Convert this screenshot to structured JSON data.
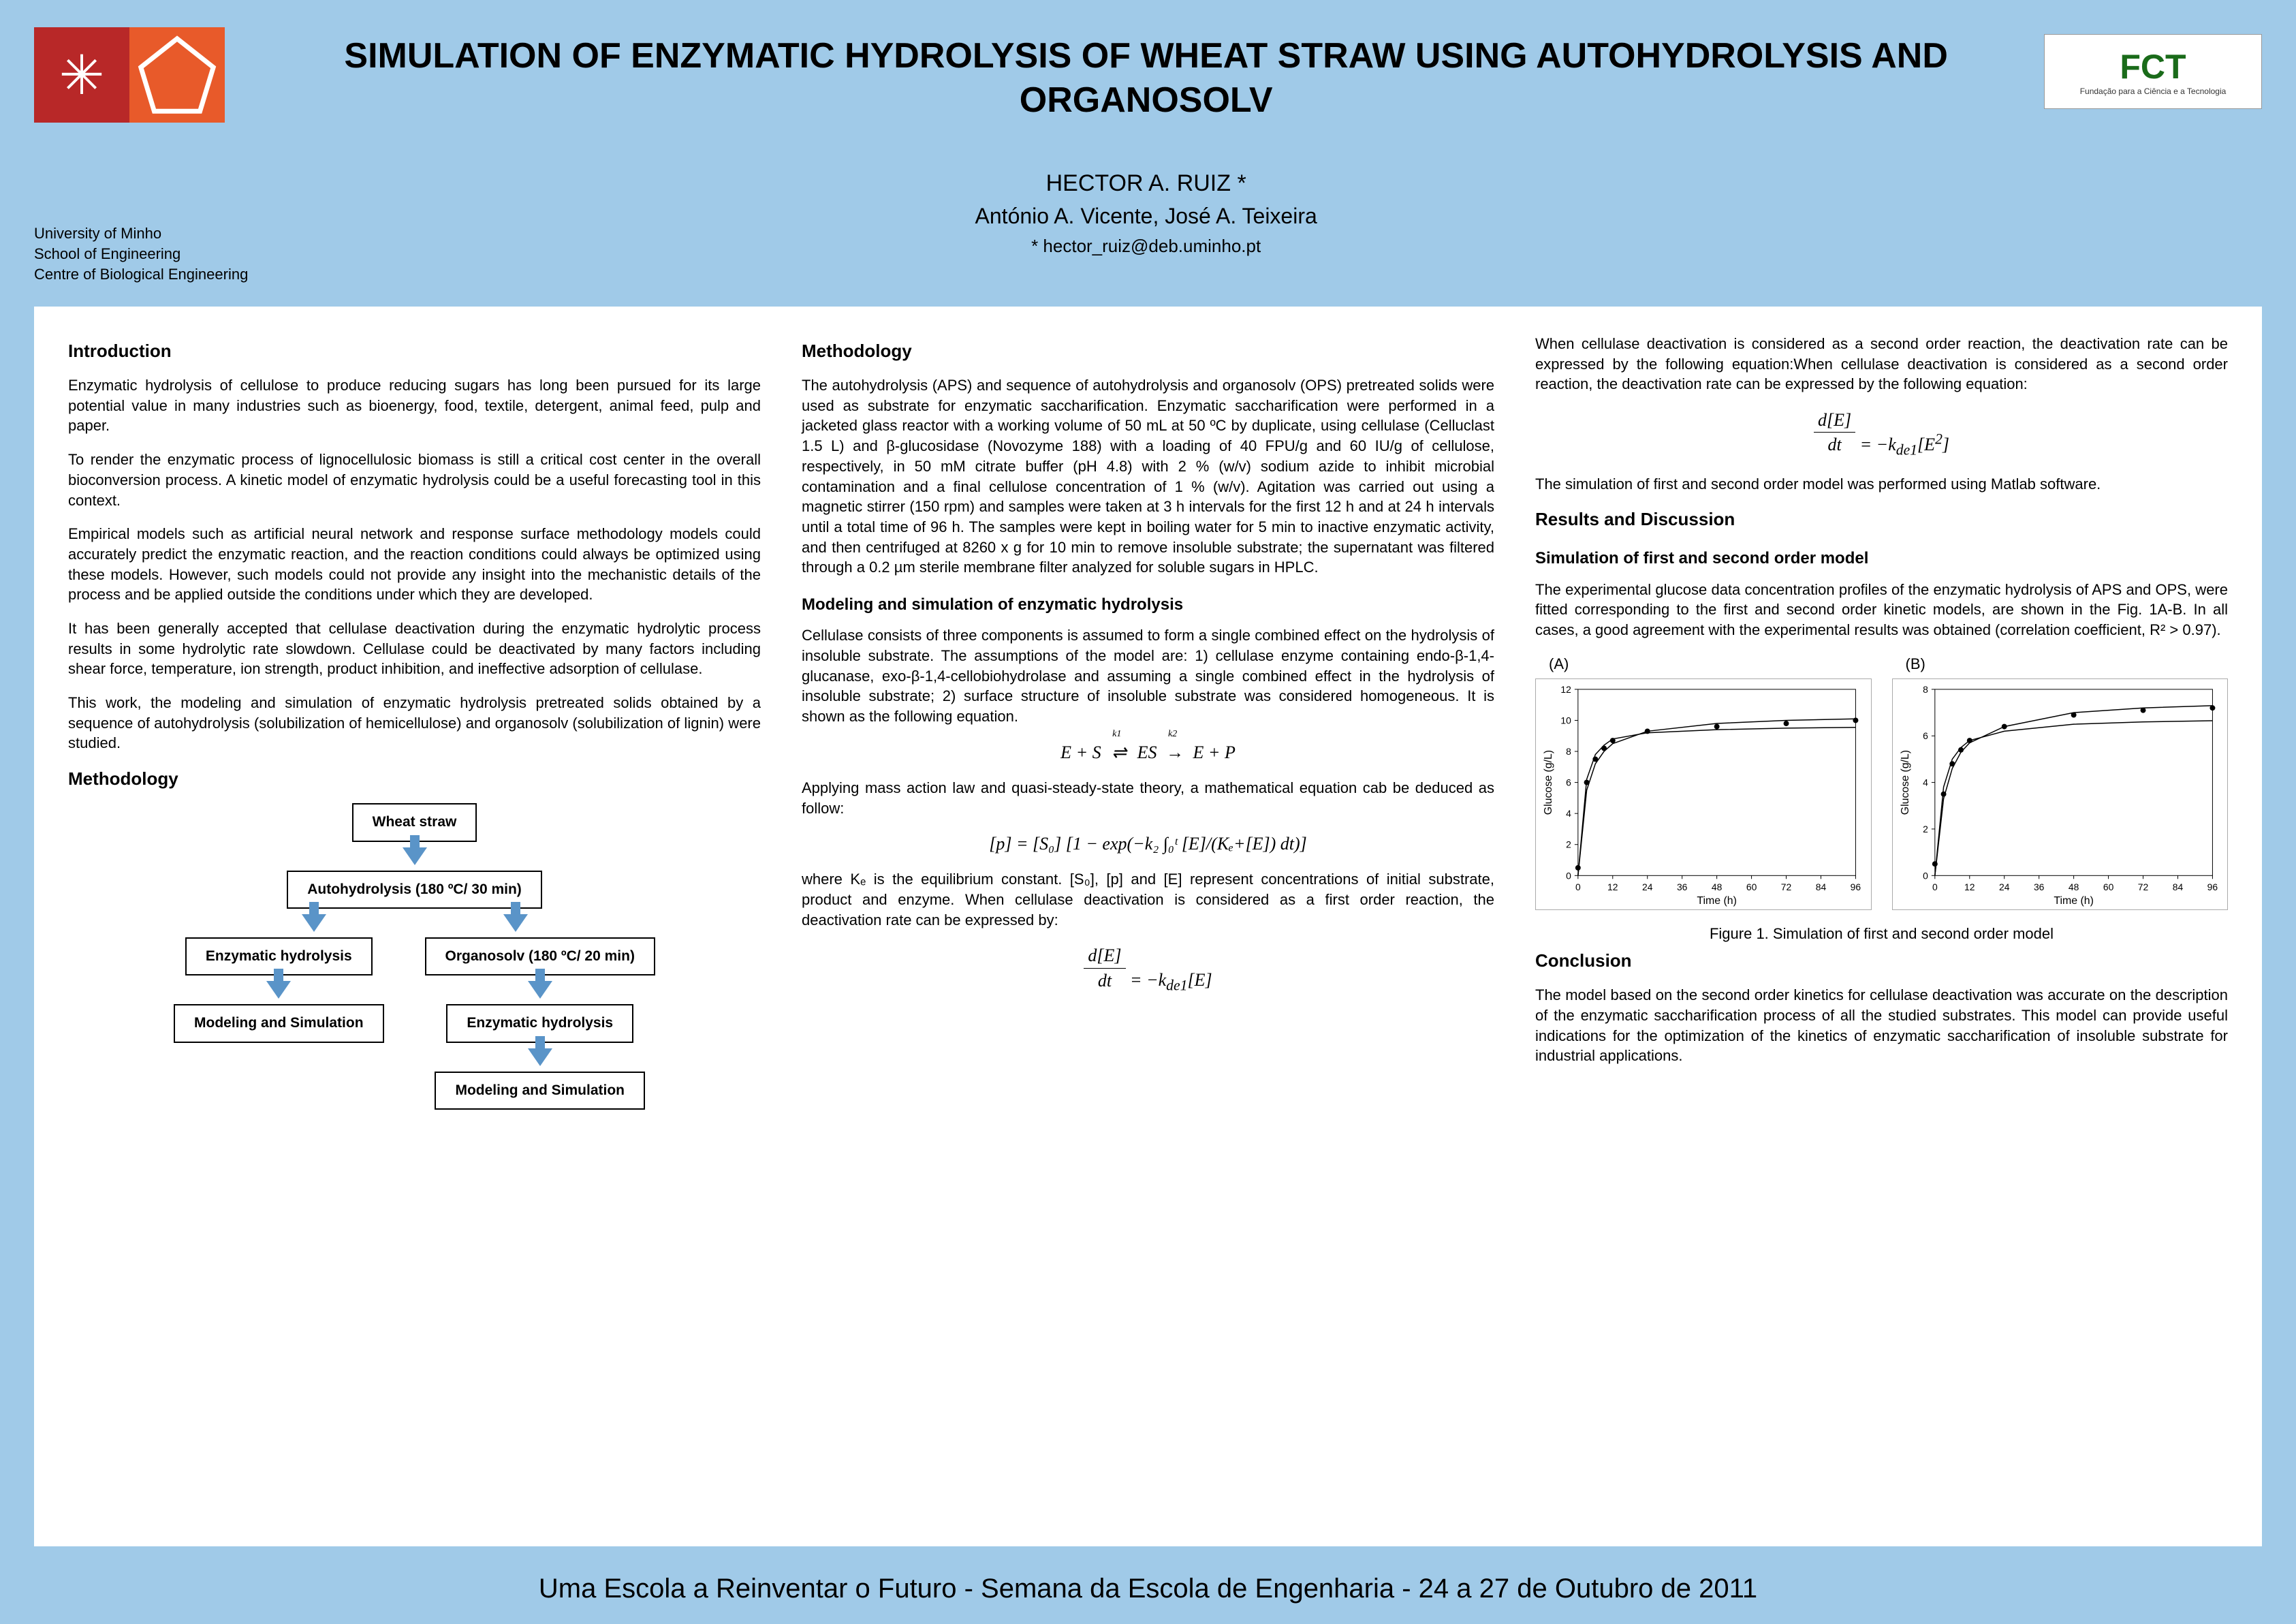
{
  "header": {
    "title": "SIMULATION OF ENZYMATIC HYDROLYSIS OF WHEAT STRAW USING AUTOHYDROLYSIS AND ORGANOSOLV",
    "author_main": "HECTOR A. RUIZ *",
    "authors_other": "António A. Vicente, José A. Teixeira",
    "email": "* hector_ruiz@deb.uminho.pt",
    "affil_1": "University of Minho",
    "affil_2": "School of Engineering",
    "affil_3": "Centre of Biological Engineering",
    "fct_label": "FCT",
    "fct_sub": "Fundação para a Ciência e a Tecnologia"
  },
  "col1": {
    "h_intro": "Introduction",
    "p1": "Enzymatic hydrolysis of cellulose to produce reducing sugars has long been pursued for its large potential value in many industries such as bioenergy, food, textile, detergent, animal feed, pulp and paper.",
    "p2": "To render the enzymatic process of lignocellulosic biomass is still a critical cost center in the overall bioconversion process. A kinetic model of enzymatic hydrolysis could be a useful forecasting tool in this context.",
    "p3": "Empirical models such as artificial neural network and response surface methodology models could accurately predict the enzymatic reaction, and the reaction conditions could always be optimized using these models. However, such models could not provide any insight into the mechanistic details of the process and be applied outside the conditions under which they are developed.",
    "p4": "It has been generally accepted that cellulase deactivation during the enzymatic hydrolytic process results in some hydrolytic rate slowdown. Cellulase could be deactivated by many factors including shear force, temperature, ion strength, product inhibition, and ineffective adsorption of cellulase.",
    "p5": "This work, the modeling and simulation of enzymatic hydrolysis pretreated solids obtained by a sequence of autohydrolysis (solubilization of hemicellulose) and organosolv (solubilization of lignin) were studied.",
    "h_meth": "Methodology",
    "flow": {
      "b1": "Wheat straw",
      "b2": "Autohydrolysis (180 ºC/ 30 min)",
      "b3a": "Enzymatic hydrolysis",
      "b3b": "Organosolv (180 ºC/ 20 min)",
      "b4a": "Modeling and Simulation",
      "b4b": "Enzymatic hydrolysis",
      "b5b": "Modeling and Simulation"
    }
  },
  "col2": {
    "h_meth": "Methodology",
    "p1": "The autohydrolysis (APS) and sequence of autohydrolysis and organosolv (OPS) pretreated solids were used as substrate for enzymatic saccharification. Enzymatic saccharification were performed in a jacketed glass reactor with a working volume of 50 mL at 50 ºC by duplicate, using cellulase (Celluclast 1.5 L) and β-glucosidase (Novozyme 188) with a loading of 40 FPU/g and 60 IU/g of cellulose, respectively, in 50 mM citrate buffer (pH 4.8) with 2 % (w/v) sodium azide to inhibit microbial contamination and a final cellulose concentration of 1 % (w/v). Agitation was carried out using a magnetic stirrer (150 rpm) and samples were taken at 3 h intervals for the first 12 h and at 24 h intervals until a total time of 96 h. The samples were kept in boiling water for 5 min to inactive enzymatic activity, and then centrifuged at 8260 x g for 10 min to remove insoluble substrate; the supernatant was filtered through a 0.2 µm sterile membrane filter analyzed for soluble sugars in HPLC.",
    "h_model": "Modeling and simulation of enzymatic hydrolysis",
    "p2": "Cellulase consists of three components is assumed to form a single combined effect on the hydrolysis of insoluble substrate. The assumptions of the model are: 1) cellulase enzyme containing endo-β-1,4-glucanase, exo-β-1,4-cellobiohydrolase and assuming a single combined effect in the hydrolysis of insoluble substrate; 2) surface structure of insoluble substrate was considered homogeneous. It is shown as the following equation.",
    "eq1": "E + S ⇌ ES → E + P",
    "eq1_k1": "k1",
    "eq1_k2": "k2",
    "p3": "Applying mass action law and quasi-steady-state theory, a mathematical equation cab be deduced as follow:",
    "eq2": "[p] = [S₀] [1 − exp(−k₂ ∫₀ᵗ [E]/(Kₑ+[E]) dt)]",
    "p4": "where Kₑ is the equilibrium constant. [S₀], [p] and [E] represent concentrations of initial substrate, product and enzyme. When cellulase deactivation is considered as a first order reaction, the deactivation rate can be expressed by:",
    "eq3": "d[E]/dt = −k_de1[E]"
  },
  "col3": {
    "p1": "When cellulase deactivation is considered as a second order reaction, the deactivation rate can be expressed by the following equation:When cellulase deactivation is considered as a second order reaction, the deactivation rate can be expressed by the following equation:",
    "eq4": "d[E]/dt = −k_de1[E²]",
    "p2": "The simulation of first and second order model was performed using Matlab software.",
    "h_results": "Results and Discussion",
    "h_sim": "Simulation of first and second order model",
    "p3": "The experimental glucose data concentration profiles of the enzymatic hydrolysis of APS and OPS, were fitted corresponding to the first and second order kinetic models, are shown in the Fig. 1A-B. In all cases, a good agreement with the experimental results was obtained (correlation coefficient, R² > 0.97).",
    "chartA": {
      "label": "(A)",
      "xlabel": "Time (h)",
      "ylabel": "Glucose (g/L)",
      "xlim": [
        0,
        96
      ],
      "xticks": [
        0,
        12,
        24,
        36,
        48,
        60,
        72,
        84,
        96
      ],
      "ylim": [
        0,
        12
      ],
      "yticks": [
        0,
        2,
        4,
        6,
        8,
        10,
        12
      ],
      "points": [
        [
          0,
          0.5
        ],
        [
          3,
          6
        ],
        [
          6,
          7.5
        ],
        [
          9,
          8.2
        ],
        [
          12,
          8.7
        ],
        [
          24,
          9.3
        ],
        [
          48,
          9.6
        ],
        [
          72,
          9.8
        ],
        [
          96,
          10
        ]
      ],
      "curve1": [
        [
          0,
          0
        ],
        [
          3,
          5.5
        ],
        [
          6,
          7.2
        ],
        [
          9,
          8
        ],
        [
          12,
          8.5
        ],
        [
          24,
          9.3
        ],
        [
          48,
          9.8
        ],
        [
          72,
          10
        ],
        [
          96,
          10.1
        ]
      ],
      "curve2": [
        [
          0,
          0
        ],
        [
          3,
          6.2
        ],
        [
          6,
          7.8
        ],
        [
          9,
          8.4
        ],
        [
          12,
          8.8
        ],
        [
          24,
          9.2
        ],
        [
          48,
          9.4
        ],
        [
          72,
          9.5
        ],
        [
          96,
          9.55
        ]
      ],
      "line_color": "#000000",
      "marker_color": "#000000"
    },
    "chartB": {
      "label": "(B)",
      "xlabel": "Time (h)",
      "ylabel": "Glucose (g/L)",
      "xlim": [
        0,
        96
      ],
      "xticks": [
        0,
        12,
        24,
        36,
        48,
        60,
        72,
        84,
        96
      ],
      "ylim": [
        0,
        8
      ],
      "yticks": [
        0,
        2,
        4,
        6,
        8
      ],
      "points": [
        [
          0,
          0.5
        ],
        [
          3,
          3.5
        ],
        [
          6,
          4.8
        ],
        [
          9,
          5.4
        ],
        [
          12,
          5.8
        ],
        [
          24,
          6.4
        ],
        [
          48,
          6.9
        ],
        [
          72,
          7.1
        ],
        [
          96,
          7.2
        ]
      ],
      "curve1": [
        [
          0,
          0
        ],
        [
          3,
          3.3
        ],
        [
          6,
          4.6
        ],
        [
          9,
          5.3
        ],
        [
          12,
          5.7
        ],
        [
          24,
          6.4
        ],
        [
          48,
          7
        ],
        [
          72,
          7.2
        ],
        [
          96,
          7.3
        ]
      ],
      "curve2": [
        [
          0,
          0
        ],
        [
          3,
          3.8
        ],
        [
          6,
          5
        ],
        [
          9,
          5.5
        ],
        [
          12,
          5.8
        ],
        [
          24,
          6.2
        ],
        [
          48,
          6.5
        ],
        [
          72,
          6.6
        ],
        [
          96,
          6.65
        ]
      ],
      "line_color": "#000000",
      "marker_color": "#000000"
    },
    "fig_caption": "Figure 1. Simulation of first and second order model",
    "h_conc": "Conclusion",
    "p_conc": "The model based on the second order kinetics for cellulase deactivation was accurate on the description of the enzymatic saccharification process of all the studied substrates. This model can provide useful indications for the optimization of the kinetics of enzymatic saccharification of insoluble substrate for industrial applications."
  },
  "footer": "Uma Escola a Reinventar o Futuro - Semana da Escola de Engenharia - 24 a 27 de Outubro de 2011",
  "colors": {
    "bg": "#a0cae8",
    "logo_red": "#b82828",
    "logo_orange": "#e85a2a",
    "arrow": "#5a94c8",
    "fct_green": "#1a6b1a"
  }
}
